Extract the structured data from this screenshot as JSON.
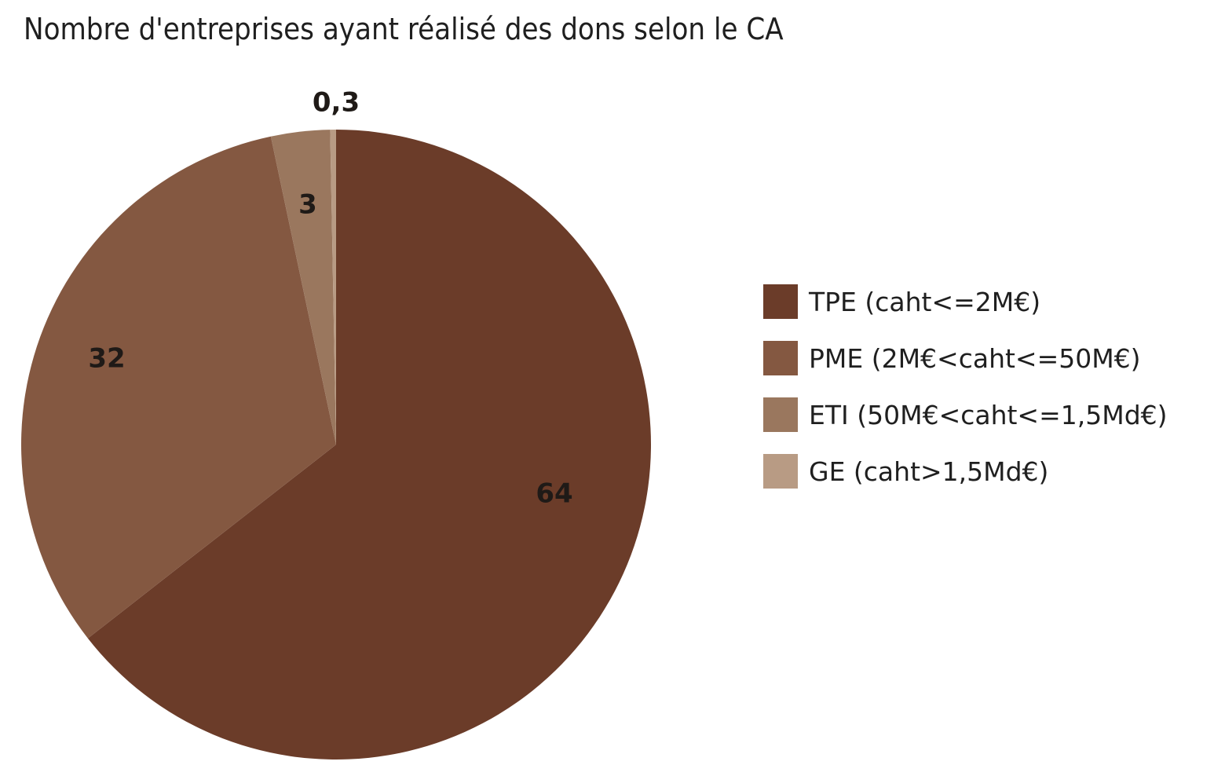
{
  "chart_data": {
    "type": "pie",
    "title": "Nombre d'entreprises ayant réalisé des dons selon le CA",
    "categories": [
      "TPE (caht<=2M€)",
      "PME (2M€<caht<=50M€)",
      "ETI (50M€<caht<=1,5Md€)",
      "GE (caht>1,5Md€)"
    ],
    "values": [
      64,
      32,
      3,
      0.3
    ],
    "value_labels": [
      "64",
      "32",
      "3",
      "0,3"
    ],
    "colors": [
      "#6b3c29",
      "#845841",
      "#9a775e",
      "#b89b84"
    ],
    "legend_placement": "right"
  }
}
